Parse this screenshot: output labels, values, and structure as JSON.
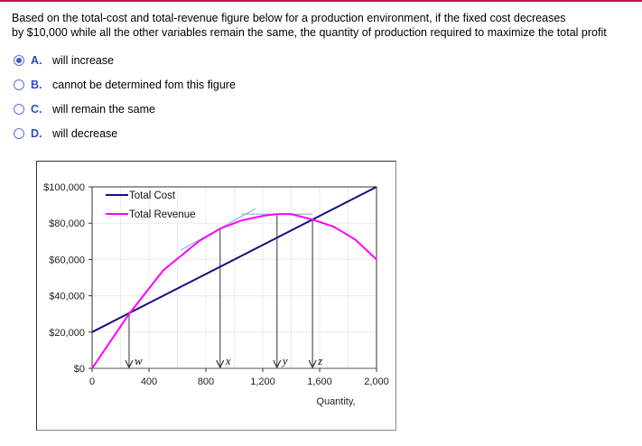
{
  "header": {
    "accent_line_color": "#c8104a"
  },
  "question": {
    "line1": "Based  on the total-cost and total-revenue figure below for a production environment, if the fixed cost decreases",
    "line2": "by $10,000 while all the other variables remain the same, the quantity of production required to maximize the total profit"
  },
  "options": [
    {
      "letter": "A.",
      "text": "will increase",
      "selected": true
    },
    {
      "letter": "B.",
      "text": "cannot be determined fom this figure",
      "selected": false
    },
    {
      "letter": "C.",
      "text": "will remain the same",
      "selected": false
    },
    {
      "letter": "D.",
      "text": "will decrease",
      "selected": false
    }
  ],
  "chart_data": {
    "type": "line",
    "title": "",
    "xlabel": "Quantity,",
    "ylabel": "",
    "xlim": [
      0,
      2000
    ],
    "ylim": [
      0,
      100000
    ],
    "x_ticks": [
      "0",
      "400",
      "800",
      "1,200",
      "1,600",
      "2,000"
    ],
    "y_ticks": [
      "$0",
      "$20,000",
      "$40,000",
      "$60,000",
      "$80,000",
      "$100,000"
    ],
    "grid": true,
    "legend_position": "upper-left",
    "series": [
      {
        "name": "Total Cost",
        "color": "#1a1080",
        "x": [
          0,
          2000
        ],
        "values": [
          20000,
          100000
        ]
      },
      {
        "name": "Total Revenue",
        "color": "#ff00ff",
        "x": [
          0,
          260,
          500,
          750,
          900,
          1050,
          1200,
          1300,
          1400,
          1550,
          1700,
          1850,
          2000
        ],
        "values": [
          0,
          30000,
          54000,
          70000,
          77000,
          81500,
          84000,
          85000,
          85000,
          82000,
          78000,
          71000,
          60000
        ]
      }
    ],
    "tangent_lines": [
      {
        "color": "#7fa8dc",
        "from": [
          620,
          65000
        ],
        "to": [
          1150,
          88000
        ]
      },
      {
        "color": "#7fa8dc",
        "from": [
          1050,
          85000
        ],
        "to": [
          1550,
          85000
        ]
      }
    ],
    "annotations": [
      {
        "label": "w",
        "x": 260,
        "from_y": 30000
      },
      {
        "label": "x",
        "x": 900,
        "from_y": 77000
      },
      {
        "label": "y",
        "x": 1300,
        "from_y": 85000
      },
      {
        "label": "z",
        "x": 1550,
        "from_y": 82000
      }
    ]
  }
}
